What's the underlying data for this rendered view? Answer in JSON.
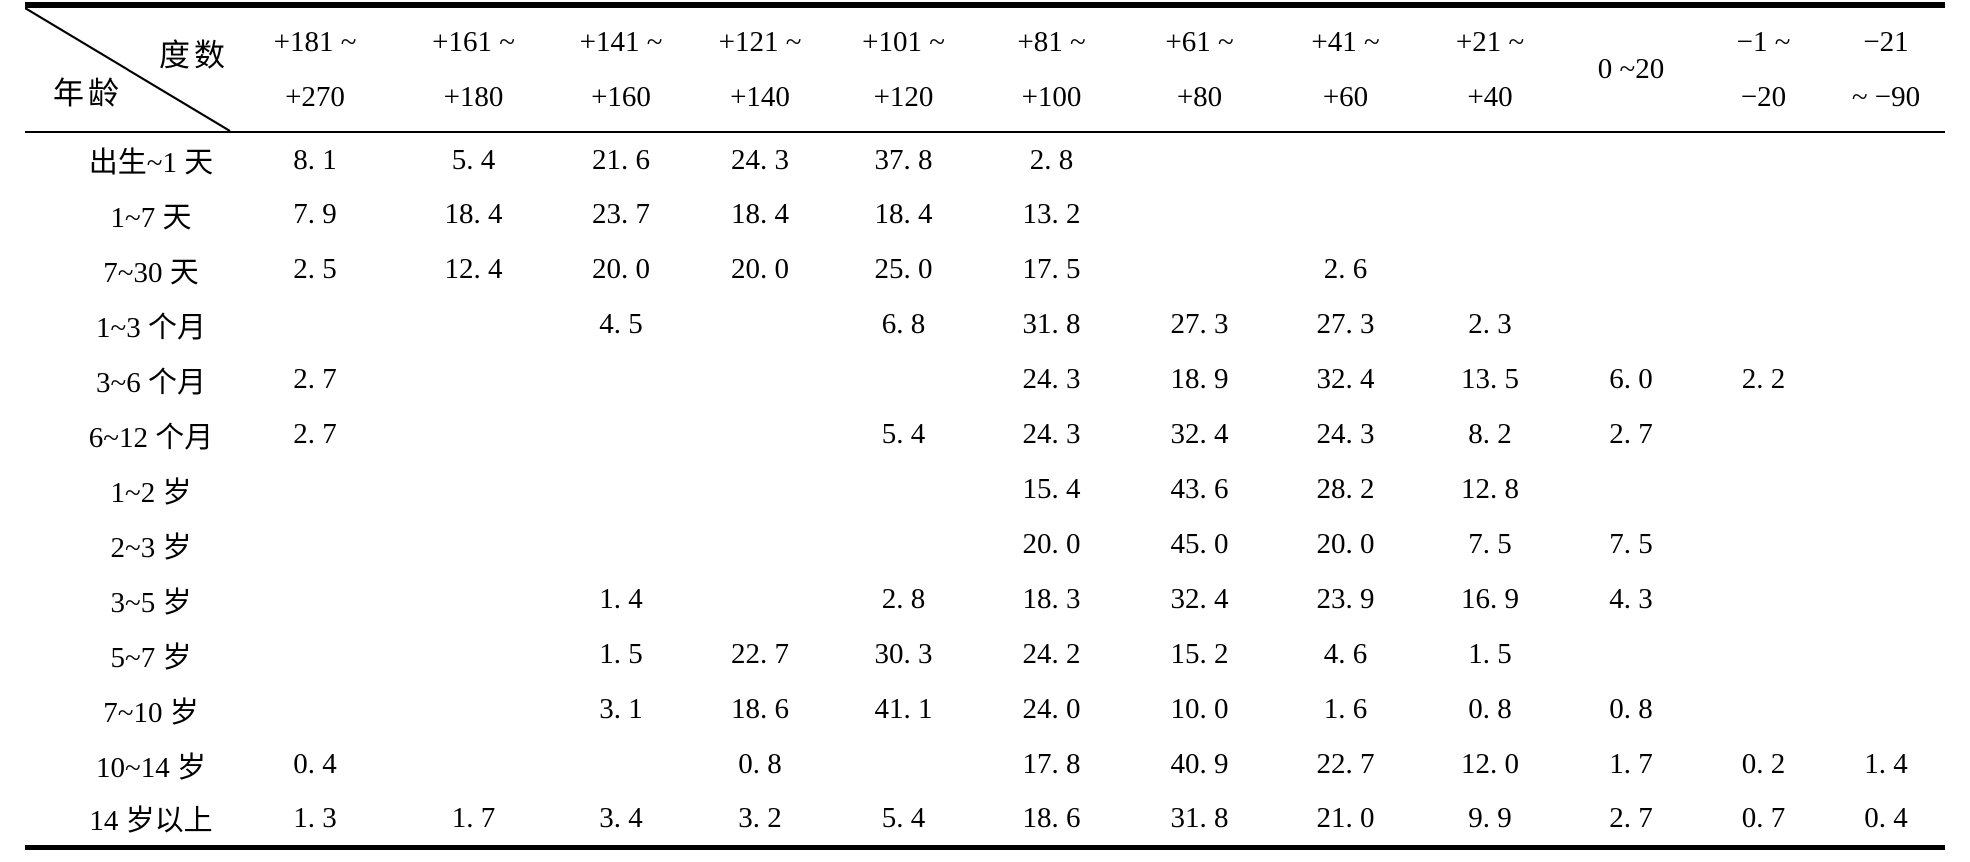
{
  "table": {
    "corner": {
      "top_right": "度数",
      "bottom_left": "年龄"
    },
    "columns": [
      {
        "line1": "+181 ~",
        "line2": "+270"
      },
      {
        "line1": "+161 ~",
        "line2": "+180"
      },
      {
        "line1": "+141 ~",
        "line2": "+160"
      },
      {
        "line1": "+121 ~",
        "line2": "+140"
      },
      {
        "line1": "+101 ~",
        "line2": "+120"
      },
      {
        "line1": "+81 ~",
        "line2": "+100"
      },
      {
        "line1": "+61 ~",
        "line2": "+80"
      },
      {
        "line1": "+41 ~",
        "line2": "+60"
      },
      {
        "line1": "+21 ~",
        "line2": "+40"
      },
      {
        "line1": "0 ~20",
        "line2": ""
      },
      {
        "line1": "−1 ~",
        "line2": "−20"
      },
      {
        "line1": "−21",
        "line2": "~ −90"
      }
    ],
    "rows": [
      {
        "label": "出生~1 天",
        "values": [
          "8.1",
          "5.4",
          "21.6",
          "24.3",
          "37.8",
          "2.8",
          "",
          "",
          "",
          "",
          "",
          ""
        ]
      },
      {
        "label": "1~7 天",
        "values": [
          "7.9",
          "18.4",
          "23.7",
          "18.4",
          "18.4",
          "13.2",
          "",
          "",
          "",
          "",
          "",
          ""
        ]
      },
      {
        "label": "7~30 天",
        "values": [
          "2.5",
          "12.4",
          "20.0",
          "20.0",
          "25.0",
          "17.5",
          "",
          "2.6",
          "",
          "",
          "",
          ""
        ]
      },
      {
        "label": "1~3 个月",
        "values": [
          "",
          "",
          "4.5",
          "",
          "6.8",
          "31.8",
          "27.3",
          "27.3",
          "2.3",
          "",
          "",
          ""
        ]
      },
      {
        "label": "3~6 个月",
        "values": [
          "2.7",
          "",
          "",
          "",
          "",
          "24.3",
          "18.9",
          "32.4",
          "13.5",
          "6.0",
          "2.2",
          ""
        ]
      },
      {
        "label": "6~12 个月",
        "values": [
          "2.7",
          "",
          "",
          "",
          "5.4",
          "24.3",
          "32.4",
          "24.3",
          "8.2",
          "2.7",
          "",
          ""
        ]
      },
      {
        "label": "1~2 岁",
        "values": [
          "",
          "",
          "",
          "",
          "",
          "15.4",
          "43.6",
          "28.2",
          "12.8",
          "",
          "",
          ""
        ]
      },
      {
        "label": "2~3 岁",
        "values": [
          "",
          "",
          "",
          "",
          "",
          "20.0",
          "45.0",
          "20.0",
          "7.5",
          "7.5",
          "",
          ""
        ]
      },
      {
        "label": "3~5 岁",
        "values": [
          "",
          "",
          "1.4",
          "",
          "2.8",
          "18.3",
          "32.4",
          "23.9",
          "16.9",
          "4.3",
          "",
          ""
        ]
      },
      {
        "label": "5~7 岁",
        "values": [
          "",
          "",
          "1.5",
          "22.7",
          "30.3",
          "24.2",
          "15.2",
          "4.6",
          "1.5",
          "",
          "",
          ""
        ]
      },
      {
        "label": "7~10 岁",
        "values": [
          "",
          "",
          "3.1",
          "18.6",
          "41.1",
          "24.0",
          "10.0",
          "1.6",
          "0.8",
          "0.8",
          "",
          ""
        ]
      },
      {
        "label": "10~14 岁",
        "values": [
          "0.4",
          "",
          "",
          "0.8",
          "",
          "17.8",
          "40.9",
          "22.7",
          "12.0",
          "1.7",
          "0.2",
          "1.4"
        ]
      },
      {
        "label": "14 岁以上",
        "values": [
          "1.3",
          "1.7",
          "3.4",
          "3.2",
          "5.4",
          "18.6",
          "31.8",
          "21.0",
          "9.9",
          "2.7",
          "0.7",
          "0.4"
        ]
      }
    ],
    "colors": {
      "text": "#000000",
      "background": "#ffffff",
      "rule": "#000000"
    }
  }
}
